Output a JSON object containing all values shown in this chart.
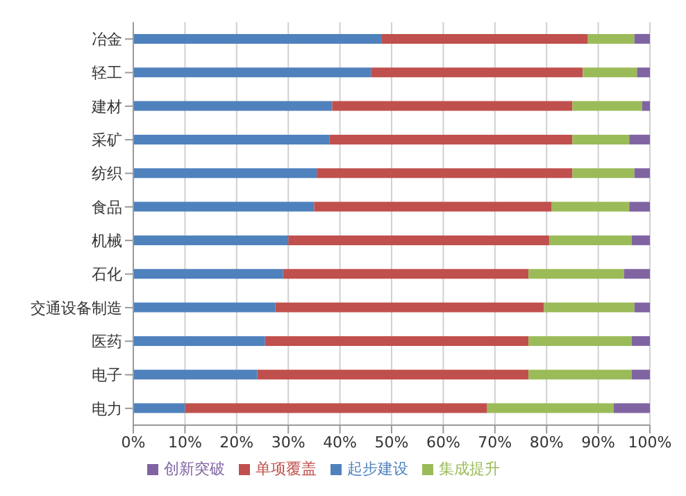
{
  "chart_data": {
    "type": "bar",
    "orientation": "horizontal",
    "stacked": true,
    "categories": [
      "冶金",
      "轻工",
      "建材",
      "采矿",
      "纺织",
      "食品",
      "机械",
      "石化",
      "交通设备制造",
      "医药",
      "电子",
      "电力"
    ],
    "series": [
      {
        "name": "起步建设",
        "color": "#4f81bd",
        "values": [
          48,
          46,
          38.5,
          38,
          35.5,
          35,
          30,
          29,
          27.5,
          25.5,
          24,
          10
        ]
      },
      {
        "name": "单项覆盖",
        "color": "#c0504d",
        "values": [
          40,
          41,
          46.5,
          47,
          49.5,
          46,
          50.5,
          47.5,
          52,
          51,
          52.5,
          58.5
        ]
      },
      {
        "name": "集成提升",
        "color": "#9bbb59",
        "values": [
          9,
          10.5,
          13.5,
          11,
          12,
          15,
          16,
          18.5,
          17.5,
          20,
          20,
          24.5
        ]
      },
      {
        "name": "创新突破",
        "color": "#8064a2",
        "values": [
          3,
          2.5,
          1.5,
          4,
          3,
          4,
          3.5,
          5,
          3,
          3.5,
          3.5,
          7
        ]
      }
    ],
    "xlim": [
      0,
      100
    ],
    "xticks": [
      {
        "value": 0,
        "label": "0%"
      },
      {
        "value": 10,
        "label": "10%"
      },
      {
        "value": 20,
        "label": "20%"
      },
      {
        "value": 30,
        "label": "30%"
      },
      {
        "value": 40,
        "label": "40%"
      },
      {
        "value": 50,
        "label": "50%"
      },
      {
        "value": 60,
        "label": "60%"
      },
      {
        "value": 70,
        "label": "70%"
      },
      {
        "value": 80,
        "label": "80%"
      },
      {
        "value": 90,
        "label": "90%"
      },
      {
        "value": 100,
        "label": "100%"
      }
    ],
    "grid": "x",
    "legend": "bottom"
  }
}
